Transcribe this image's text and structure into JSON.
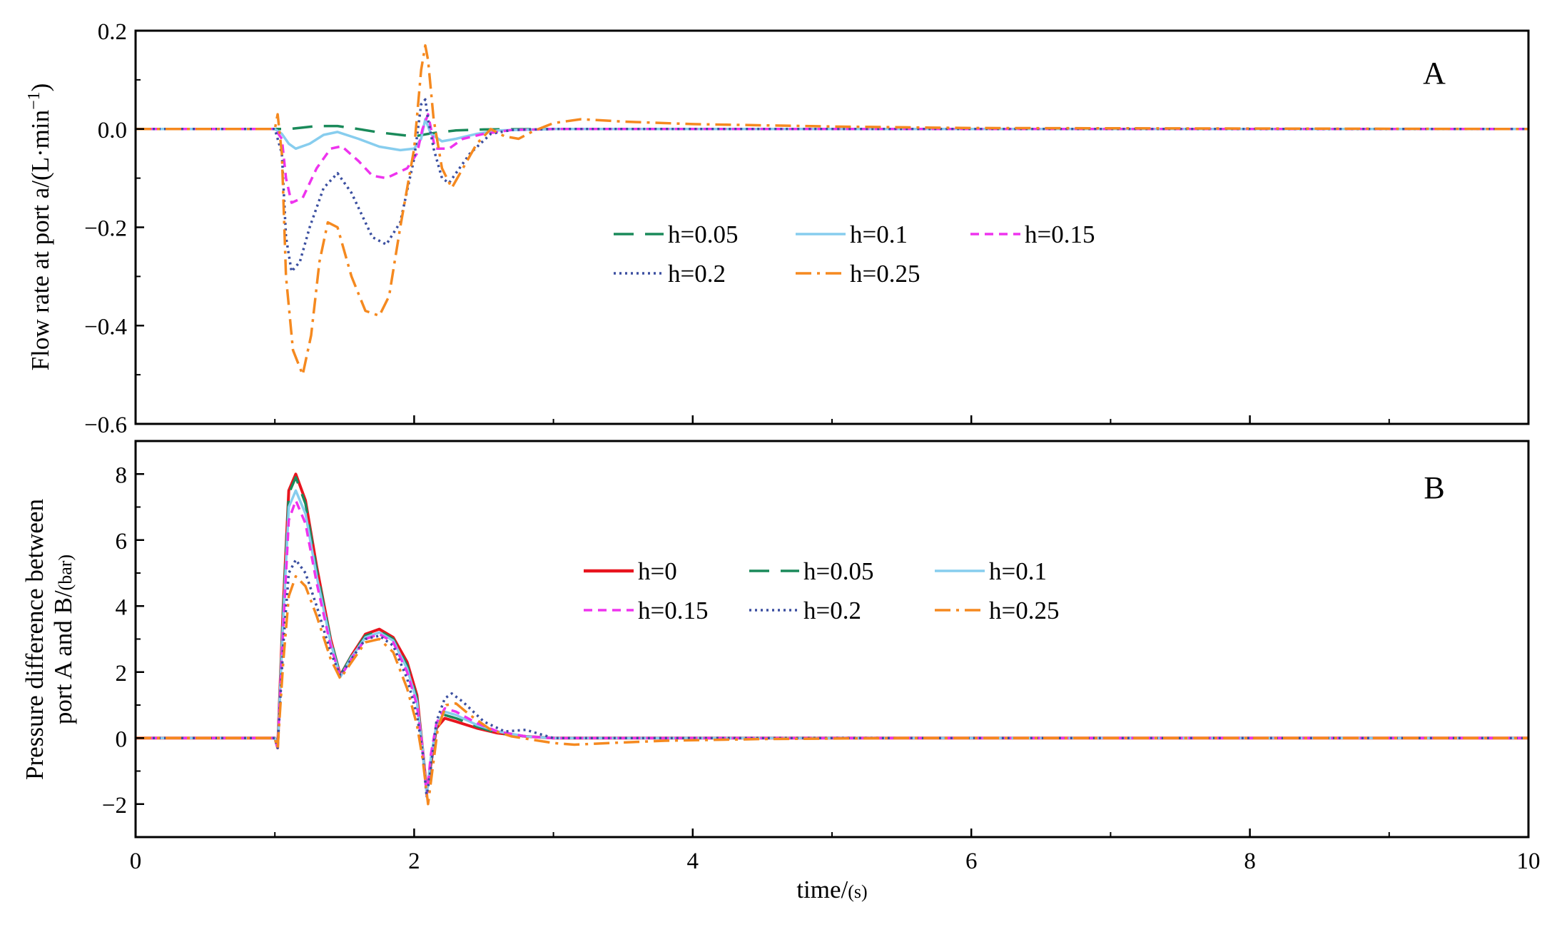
{
  "chart_data": [
    {
      "panel_label": "A",
      "type": "line",
      "ylabel": "Flow rate at port a/(L·min",
      "ylabel_sup": "−1",
      "ylabel_close": ")",
      "ylim": [
        -0.6,
        0.2
      ],
      "yticks": [
        -0.6,
        -0.4,
        -0.2,
        0.0,
        0.2
      ],
      "ytick_labels": [
        "−0.6",
        "−0.4",
        "−0.2",
        "0.0",
        "0.2"
      ],
      "xlim": [
        0,
        10
      ],
      "legend": "center",
      "series": [
        {
          "name": "h=0.05",
          "color": "#1a8a5a",
          "dash": "28,16",
          "x": [
            0,
            1.0,
            1.1,
            1.2,
            1.3,
            1.45,
            1.6,
            1.75,
            1.9,
            2.0,
            2.1,
            2.2,
            2.3,
            2.5,
            3,
            10
          ],
          "y": [
            0,
            0,
            0.0,
            0.003,
            0.006,
            0.006,
            0.0,
            -0.007,
            -0.012,
            -0.015,
            -0.01,
            -0.006,
            -0.003,
            -0.001,
            0,
            0
          ]
        },
        {
          "name": "h=0.1",
          "color": "#87cdee",
          "dash": "",
          "x": [
            0,
            1.0,
            1.05,
            1.1,
            1.15,
            1.25,
            1.35,
            1.45,
            1.6,
            1.75,
            1.9,
            2.0,
            2.05,
            2.08,
            2.12,
            2.2,
            2.3,
            2.45,
            2.6,
            3,
            10
          ],
          "y": [
            0,
            0,
            -0.01,
            -0.03,
            -0.04,
            -0.03,
            -0.012,
            -0.006,
            -0.02,
            -0.036,
            -0.043,
            -0.04,
            -0.02,
            0.02,
            -0.01,
            -0.025,
            -0.02,
            -0.01,
            -0.003,
            0,
            0
          ]
        },
        {
          "name": "h=0.15",
          "color": "#ee33ee",
          "dash": "12,8",
          "x": [
            0,
            1.0,
            1.05,
            1.08,
            1.12,
            1.2,
            1.3,
            1.4,
            1.48,
            1.6,
            1.7,
            1.8,
            1.95,
            2.02,
            2.06,
            2.1,
            2.15,
            2.25,
            2.35,
            2.5,
            2.7,
            3,
            10
          ],
          "y": [
            0,
            0,
            -0.02,
            -0.1,
            -0.15,
            -0.14,
            -0.08,
            -0.04,
            -0.035,
            -0.065,
            -0.095,
            -0.1,
            -0.08,
            -0.05,
            0.0,
            0.03,
            -0.04,
            -0.04,
            -0.02,
            -0.01,
            -0.002,
            0,
            0
          ]
        },
        {
          "name": "h=0.2",
          "color": "#3b4fa0",
          "dash": "3,5",
          "x": [
            0,
            1.0,
            1.05,
            1.08,
            1.12,
            1.18,
            1.25,
            1.35,
            1.45,
            1.55,
            1.7,
            1.8,
            1.9,
            2.0,
            2.05,
            2.08,
            2.1,
            2.14,
            2.2,
            2.25,
            2.3,
            2.4,
            2.55,
            2.7,
            3,
            10
          ],
          "y": [
            0,
            0,
            -0.05,
            -0.22,
            -0.29,
            -0.27,
            -0.2,
            -0.12,
            -0.09,
            -0.13,
            -0.22,
            -0.235,
            -0.19,
            -0.06,
            0.05,
            0.06,
            0.02,
            -0.04,
            -0.1,
            -0.11,
            -0.09,
            -0.05,
            -0.01,
            -0.002,
            0,
            0
          ]
        },
        {
          "name": "h=0.25",
          "color": "#f5891f",
          "dash": "22,8,4,8",
          "x": [
            0,
            1.0,
            1.02,
            1.05,
            1.08,
            1.13,
            1.2,
            1.26,
            1.32,
            1.38,
            1.45,
            1.55,
            1.65,
            1.75,
            1.82,
            1.9,
            2.0,
            2.05,
            2.08,
            2.1,
            2.14,
            2.2,
            2.27,
            2.35,
            2.45,
            2.55,
            2.65,
            2.75,
            2.85,
            3.0,
            3.2,
            3.5,
            4,
            5,
            6,
            10
          ],
          "y": [
            0,
            0,
            0.03,
            -0.05,
            -0.3,
            -0.45,
            -0.5,
            -0.42,
            -0.27,
            -0.19,
            -0.2,
            -0.3,
            -0.37,
            -0.38,
            -0.34,
            -0.2,
            -0.04,
            0.12,
            0.17,
            0.14,
            0.02,
            -0.08,
            -0.12,
            -0.08,
            -0.03,
            0.0,
            -0.015,
            -0.02,
            -0.005,
            0.012,
            0.02,
            0.015,
            0.01,
            0.005,
            0.002,
            0
          ]
        }
      ]
    },
    {
      "panel_label": "B",
      "type": "line",
      "ylabel_line1": "Pressure difference between",
      "ylabel_line2": "port A and B/",
      "ylabel_unit": "(bar)",
      "ylim": [
        -3,
        9
      ],
      "yticks": [
        -2,
        0,
        2,
        4,
        6,
        8
      ],
      "ytick_labels": [
        "−2",
        "0",
        "2",
        "4",
        "6",
        "8"
      ],
      "xlabel": "time/",
      "xlabel_unit": "(s)",
      "xlim": [
        0,
        10
      ],
      "xticks": [
        0,
        2,
        4,
        6,
        8,
        10
      ],
      "xtick_labels": [
        "0",
        "2",
        "4",
        "6",
        "8",
        "10"
      ],
      "legend": "center",
      "series": [
        {
          "name": "h=0",
          "color": "#e8141e",
          "dash": "",
          "x": [
            0,
            1.0,
            1.02,
            1.06,
            1.1,
            1.15,
            1.22,
            1.3,
            1.4,
            1.47,
            1.55,
            1.65,
            1.75,
            1.85,
            1.95,
            2.02,
            2.06,
            2.09,
            2.12,
            2.16,
            2.22,
            2.3,
            2.45,
            2.6,
            2.8,
            3,
            10
          ],
          "y": [
            0,
            0,
            -0.3,
            4.0,
            7.5,
            8.0,
            7.2,
            5.2,
            3.0,
            1.9,
            2.5,
            3.15,
            3.3,
            3.05,
            2.3,
            1.3,
            -0.3,
            -1.6,
            -0.8,
            0.3,
            0.6,
            0.5,
            0.3,
            0.15,
            0.05,
            0,
            0
          ]
        },
        {
          "name": "h=0.05",
          "color": "#1a8a5a",
          "dash": "28,16",
          "x": [
            0,
            1.0,
            1.02,
            1.06,
            1.1,
            1.15,
            1.22,
            1.3,
            1.4,
            1.47,
            1.55,
            1.65,
            1.75,
            1.85,
            1.95,
            2.02,
            2.06,
            2.09,
            2.12,
            2.16,
            2.22,
            2.3,
            2.45,
            2.6,
            2.8,
            3,
            10
          ],
          "y": [
            0,
            0,
            -0.3,
            3.9,
            7.4,
            7.9,
            7.1,
            5.1,
            3.0,
            1.9,
            2.5,
            3.1,
            3.25,
            3.0,
            2.2,
            1.2,
            -0.3,
            -1.65,
            -0.7,
            0.35,
            0.7,
            0.6,
            0.35,
            0.15,
            0.05,
            0,
            0
          ]
        },
        {
          "name": "h=0.1",
          "color": "#87cdee",
          "dash": "",
          "x": [
            0,
            1.0,
            1.02,
            1.06,
            1.1,
            1.15,
            1.22,
            1.3,
            1.4,
            1.47,
            1.55,
            1.65,
            1.75,
            1.85,
            1.95,
            2.02,
            2.06,
            2.09,
            2.12,
            2.16,
            2.22,
            2.3,
            2.45,
            2.6,
            2.8,
            3,
            10
          ],
          "y": [
            0,
            0,
            -0.3,
            3.6,
            7.0,
            7.5,
            6.8,
            4.9,
            2.9,
            1.85,
            2.45,
            3.05,
            3.2,
            2.95,
            2.1,
            1.1,
            -0.3,
            -1.7,
            -0.6,
            0.4,
            0.8,
            0.7,
            0.4,
            0.2,
            0.05,
            0,
            0
          ]
        },
        {
          "name": "h=0.15",
          "color": "#ee33ee",
          "dash": "12,8",
          "x": [
            0,
            1.0,
            1.02,
            1.06,
            1.1,
            1.15,
            1.22,
            1.3,
            1.4,
            1.47,
            1.55,
            1.65,
            1.75,
            1.85,
            1.95,
            2.02,
            2.06,
            2.09,
            2.12,
            2.16,
            2.22,
            2.3,
            2.45,
            2.6,
            2.8,
            3,
            10
          ],
          "y": [
            0,
            0,
            -0.3,
            3.3,
            6.6,
            7.2,
            6.5,
            4.7,
            2.8,
            1.85,
            2.4,
            3.0,
            3.15,
            2.9,
            2.0,
            1.0,
            -0.35,
            -1.75,
            -0.5,
            0.45,
            0.9,
            0.8,
            0.45,
            0.2,
            0.05,
            0,
            0
          ]
        },
        {
          "name": "h=0.2",
          "color": "#3b4fa0",
          "dash": "3,5",
          "x": [
            0,
            1.0,
            1.02,
            1.06,
            1.1,
            1.15,
            1.22,
            1.3,
            1.4,
            1.47,
            1.55,
            1.65,
            1.75,
            1.85,
            1.95,
            2.02,
            2.06,
            2.09,
            2.12,
            2.16,
            2.22,
            2.27,
            2.35,
            2.5,
            2.65,
            2.8,
            3,
            10
          ],
          "y": [
            0,
            0,
            -0.3,
            2.8,
            5.0,
            5.4,
            5.0,
            4.0,
            2.6,
            1.9,
            2.4,
            3.0,
            3.1,
            2.8,
            1.8,
            0.7,
            -0.4,
            -1.8,
            -0.9,
            0.5,
            1.2,
            1.35,
            1.1,
            0.5,
            0.2,
            0.25,
            0,
            0
          ]
        },
        {
          "name": "h=0.25",
          "color": "#f5891f",
          "dash": "22,8,4,8",
          "x": [
            0,
            1.0,
            1.02,
            1.06,
            1.1,
            1.15,
            1.22,
            1.3,
            1.4,
            1.47,
            1.55,
            1.65,
            1.75,
            1.85,
            1.95,
            2.02,
            2.06,
            2.1,
            2.13,
            2.17,
            2.23,
            2.3,
            2.4,
            2.55,
            2.7,
            2.85,
            3.0,
            3.15,
            3.4,
            3.8,
            4.5,
            5.5,
            10
          ],
          "y": [
            0,
            0,
            -0.3,
            2.3,
            4.3,
            4.9,
            4.6,
            3.7,
            2.4,
            1.8,
            2.3,
            2.9,
            3.0,
            2.6,
            1.5,
            0.4,
            -0.6,
            -2.0,
            -1.0,
            0.3,
            1.0,
            1.05,
            0.7,
            0.25,
            0.05,
            -0.05,
            -0.15,
            -0.2,
            -0.15,
            -0.08,
            -0.03,
            0,
            0
          ]
        }
      ]
    }
  ]
}
